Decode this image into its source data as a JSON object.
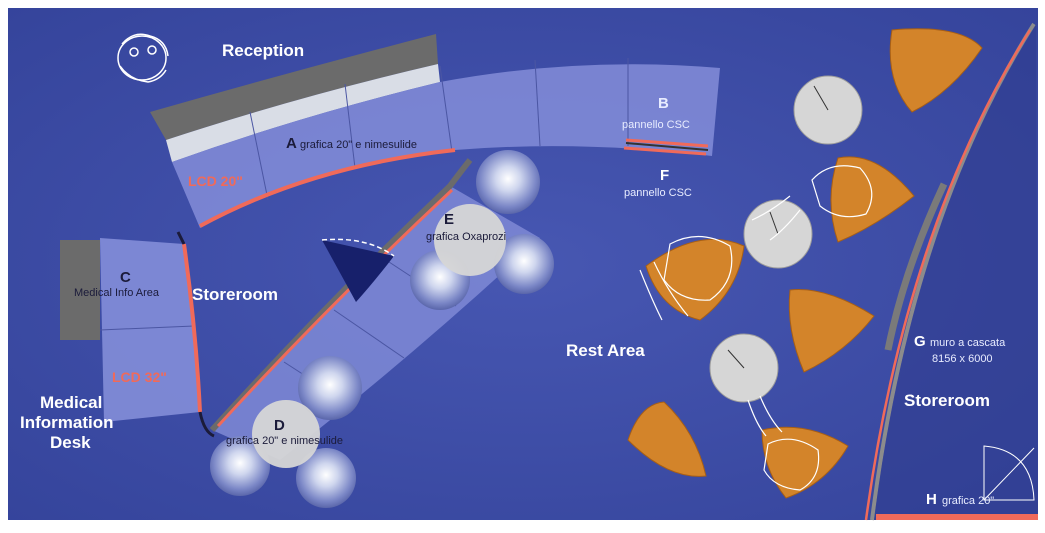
{
  "zones": {
    "reception": "Reception",
    "storeroom_left": "Storeroom",
    "medical_desk": [
      "Medical",
      "Information",
      "Desk"
    ],
    "rest_area": "Rest Area",
    "storeroom_right": "Storeroom"
  },
  "items": {
    "a_letter": "A",
    "a_text": "grafica 20\" e nimesulide",
    "b_letter": "B",
    "b_text": "pannello CSC",
    "f_letter": "F",
    "f_text": "pannello CSC",
    "c_letter": "C",
    "c_text": "Medical Info Area",
    "e_letter": "E",
    "e_text": "grafica Oxaprozi",
    "d_letter": "D",
    "d_text": "grafica 20\" e nimesulide",
    "g_letter": "G",
    "g_text_1": "muro a cascata",
    "g_text_2": "8156 x 6000",
    "h_letter": "H",
    "h_text": "grafica 20\"",
    "lcd_top": "LCD 20\"",
    "lcd_left": "LCD 32\""
  },
  "colors": {
    "floor": "#3e4ea6",
    "panel": "#7f8ad6",
    "wall_dark": "#6b6b6b",
    "wall_light": "#d9dde6",
    "accent_line": "#f06a5a",
    "chair": "#d3842a",
    "table": "#d6d6d6"
  }
}
